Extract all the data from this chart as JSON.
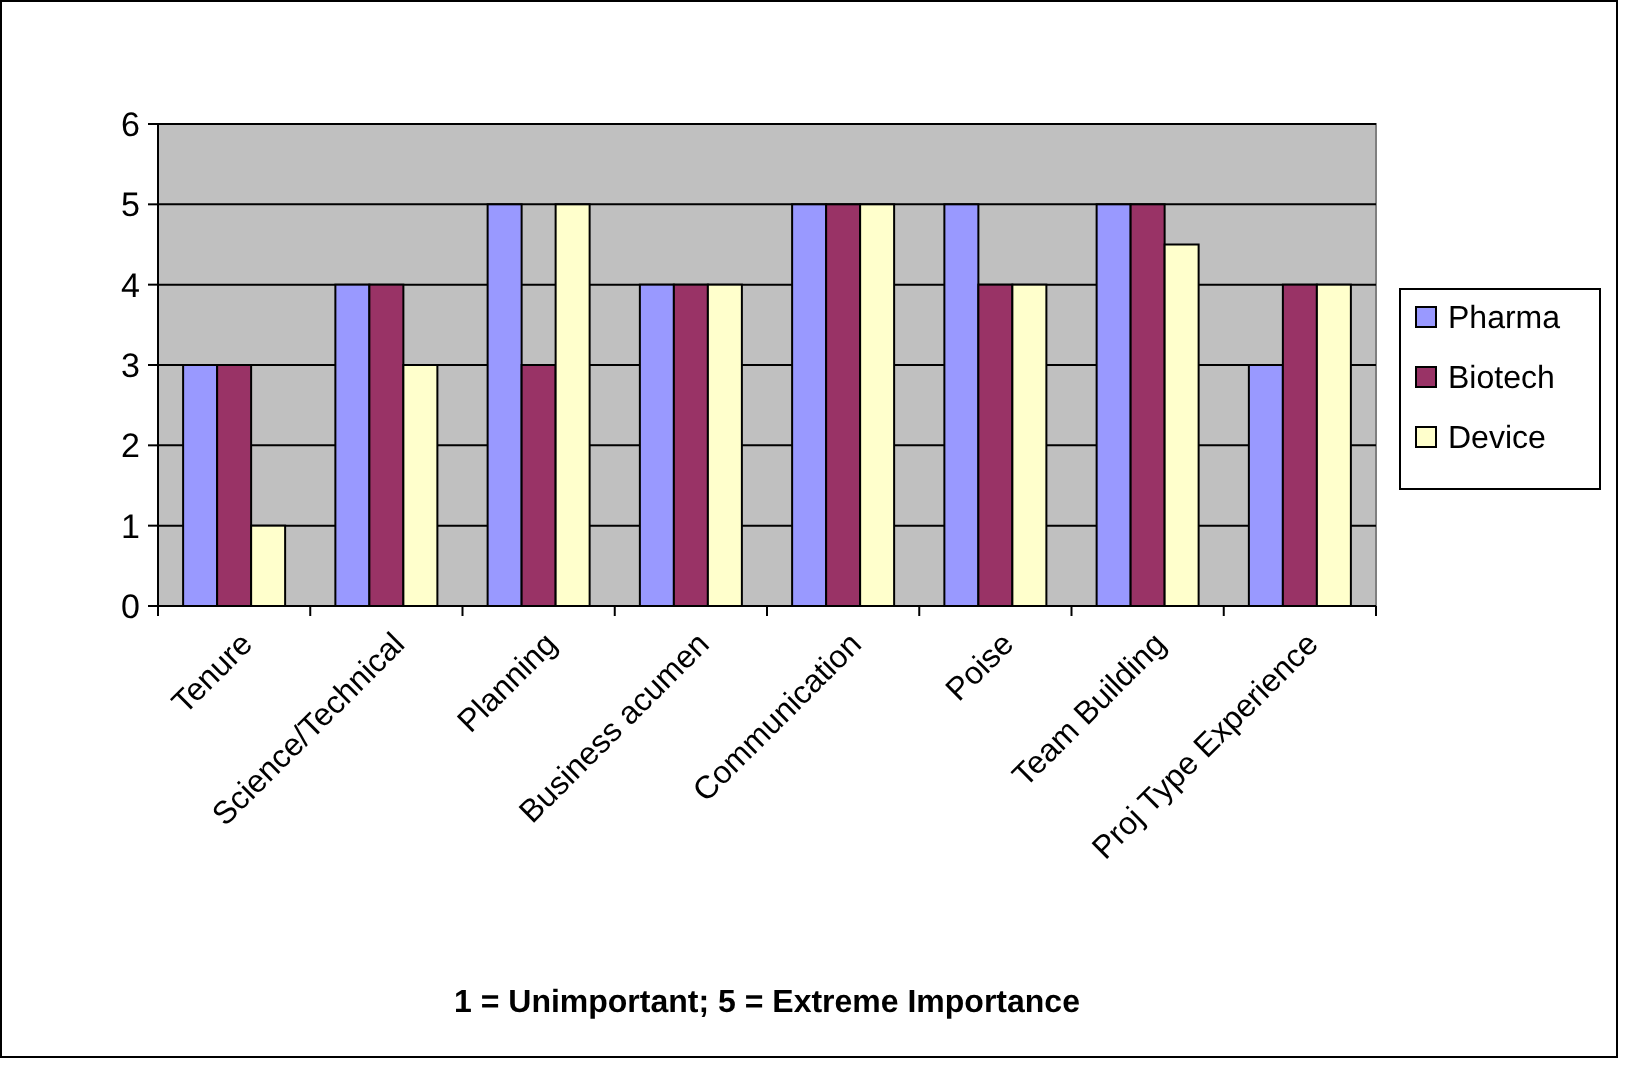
{
  "chart_data": {
    "type": "bar",
    "xlabel": "1 = Unimportant; 5 = Extreme Importance",
    "categories": [
      "Tenure",
      "Science/Technical",
      "Planning",
      "Business acumen",
      "Communication",
      "Poise",
      "Team Building",
      "Proj Type Experience"
    ],
    "series": [
      {
        "name": "Pharma",
        "color": "#9999ff",
        "values": [
          3,
          4,
          5,
          4,
          5,
          5,
          5,
          3
        ]
      },
      {
        "name": "Biotech",
        "color": "#993366",
        "values": [
          3,
          4,
          3,
          4,
          5,
          4,
          5,
          4
        ]
      },
      {
        "name": "Device",
        "color": "#ffffcc",
        "values": [
          1,
          3,
          5,
          4,
          5,
          4,
          4.5,
          4
        ]
      }
    ],
    "ylim": [
      0,
      6
    ],
    "yticks": [
      0,
      1,
      2,
      3,
      4,
      5,
      6
    ],
    "grid": "y",
    "legend": "right"
  }
}
